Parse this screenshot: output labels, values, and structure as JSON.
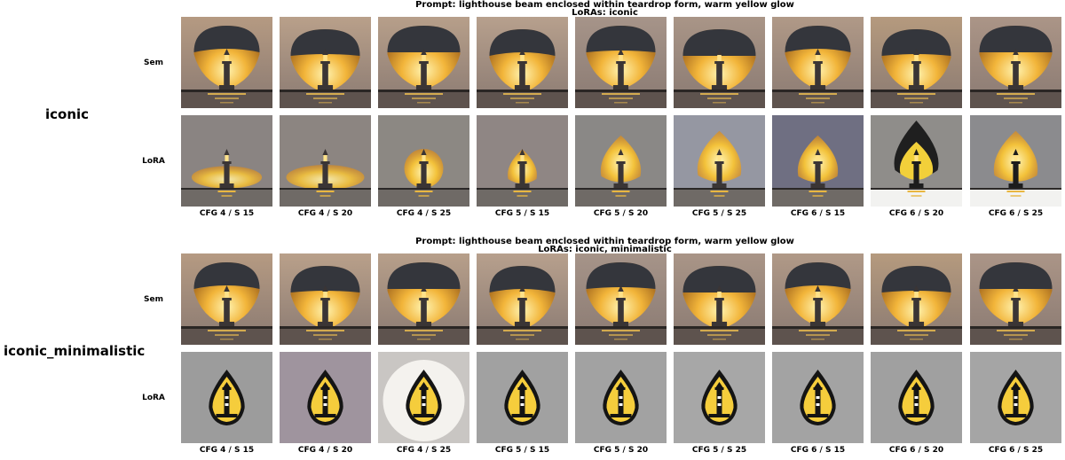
{
  "blocks": [
    {
      "group_label": "iconic",
      "prompt_line1": "Prompt: lighthouse beam enclosed within teardrop form, warm yellow glow",
      "prompt_line2": "LoRAs: iconic",
      "rows": [
        {
          "label": "Sem",
          "style": "sunset-dome",
          "cells": [
            {
              "bg": "#b59a82",
              "variant": 0
            },
            {
              "bg": "#b9a08a",
              "variant": 1
            },
            {
              "bg": "#b79f8a",
              "variant": 2
            },
            {
              "bg": "#b7a08d",
              "variant": 3
            },
            {
              "bg": "#a69489",
              "variant": 4
            },
            {
              "bg": "#a99587",
              "variant": 5
            },
            {
              "bg": "#b09987",
              "variant": 6
            },
            {
              "bg": "#b59a7e",
              "variant": 7
            },
            {
              "bg": "#ab9587",
              "variant": 8
            }
          ]
        },
        {
          "label": "LoRA",
          "style": "glow",
          "cells": [
            {
              "bg": "#8a8482",
              "variant": 0
            },
            {
              "bg": "#8c8581",
              "variant": 1
            },
            {
              "bg": "#8c8883",
              "variant": 2
            },
            {
              "bg": "#8f8684",
              "variant": 3
            },
            {
              "bg": "#8a8886",
              "variant": 4
            },
            {
              "bg": "#9597a2",
              "variant": 5
            },
            {
              "bg": "#6f6f82",
              "variant": 6
            },
            {
              "bg": "#8f8d8a",
              "variant": 7
            },
            {
              "bg": "#8b8b8e",
              "variant": 8
            }
          ]
        }
      ],
      "captions": [
        "CFG 4 / S 15",
        "CFG 4 / S 20",
        "CFG 4 / S 25",
        "CFG 5 / S 15",
        "CFG 5 / S 20",
        "CFG 5 / S 25",
        "CFG 6 / S 15",
        "CFG 6 / S 20",
        "CFG 6 / S 25"
      ]
    },
    {
      "group_label": "iconic_minimalistic",
      "prompt_line1": "Prompt: lighthouse beam enclosed within teardrop form, warm yellow glow",
      "prompt_line2": "LoRAs: iconic, minimalistic",
      "rows": [
        {
          "label": "Sem",
          "style": "sunset-dome",
          "cells": [
            {
              "bg": "#b59a82",
              "variant": 0
            },
            {
              "bg": "#b9a08a",
              "variant": 1
            },
            {
              "bg": "#b79f8a",
              "variant": 2
            },
            {
              "bg": "#b7a08d",
              "variant": 3
            },
            {
              "bg": "#a69489",
              "variant": 4
            },
            {
              "bg": "#a99587",
              "variant": 5
            },
            {
              "bg": "#b09987",
              "variant": 6
            },
            {
              "bg": "#b59a7e",
              "variant": 7
            },
            {
              "bg": "#ab9587",
              "variant": 8
            }
          ]
        },
        {
          "label": "LoRA",
          "style": "icon-drop",
          "cells": [
            {
              "bg": "#9c9c9c",
              "variant": 0
            },
            {
              "bg": "#9f949e",
              "variant": 1
            },
            {
              "bg": "#c9c6c3",
              "variant": 2
            },
            {
              "bg": "#a1a1a1",
              "variant": 3
            },
            {
              "bg": "#a2a2a2",
              "variant": 4
            },
            {
              "bg": "#a7a7a7",
              "variant": 5
            },
            {
              "bg": "#a3a3a3",
              "variant": 6
            },
            {
              "bg": "#a0a0a0",
              "variant": 7
            },
            {
              "bg": "#a5a5a5",
              "variant": 8
            }
          ]
        }
      ],
      "captions": [
        "CFG 4 / S 15",
        "CFG 4 / S 20",
        "CFG 4 / S 25",
        "CFG 5 / S 15",
        "CFG 5 / S 20",
        "CFG 5 / S 25",
        "CFG 6 / S 15",
        "CFG 6 / S 20",
        "CFG 6 / S 25"
      ]
    }
  ]
}
